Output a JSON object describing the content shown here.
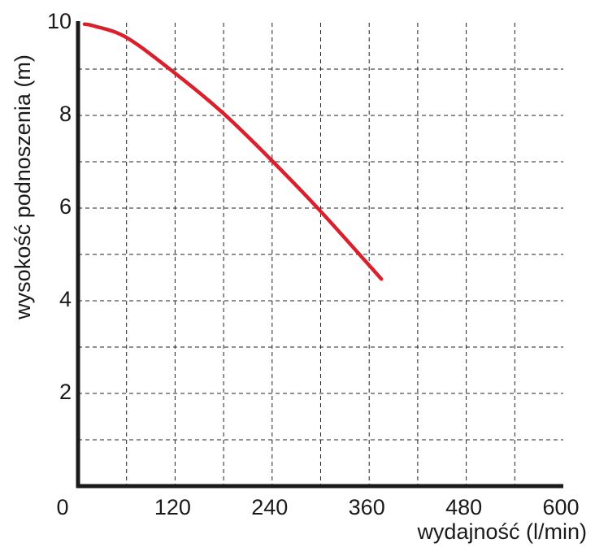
{
  "chart_data": {
    "type": "line",
    "xlabel": "wydajność (l/min)",
    "ylabel": "wysokość podnoszenia (m)",
    "x": [
      8,
      20,
      60,
      120,
      180,
      240,
      300,
      375
    ],
    "series": [
      {
        "color": "#d7222e",
        "values": [
          9.97,
          9.93,
          9.68,
          8.91,
          8.04,
          7.02,
          5.93,
          4.47
        ]
      }
    ],
    "xlim": [
      0,
      600
    ],
    "xticks": [
      0,
      120,
      240,
      360,
      480,
      600
    ],
    "ylim": [
      0,
      10
    ],
    "yticks": [
      2,
      4,
      6,
      8,
      10
    ],
    "xgrid": [
      60,
      120,
      180,
      240,
      300,
      360,
      420,
      480,
      540
    ],
    "ygrid": [
      1,
      2,
      3,
      4,
      5,
      6,
      7,
      8,
      9
    ],
    "grid": true
  }
}
